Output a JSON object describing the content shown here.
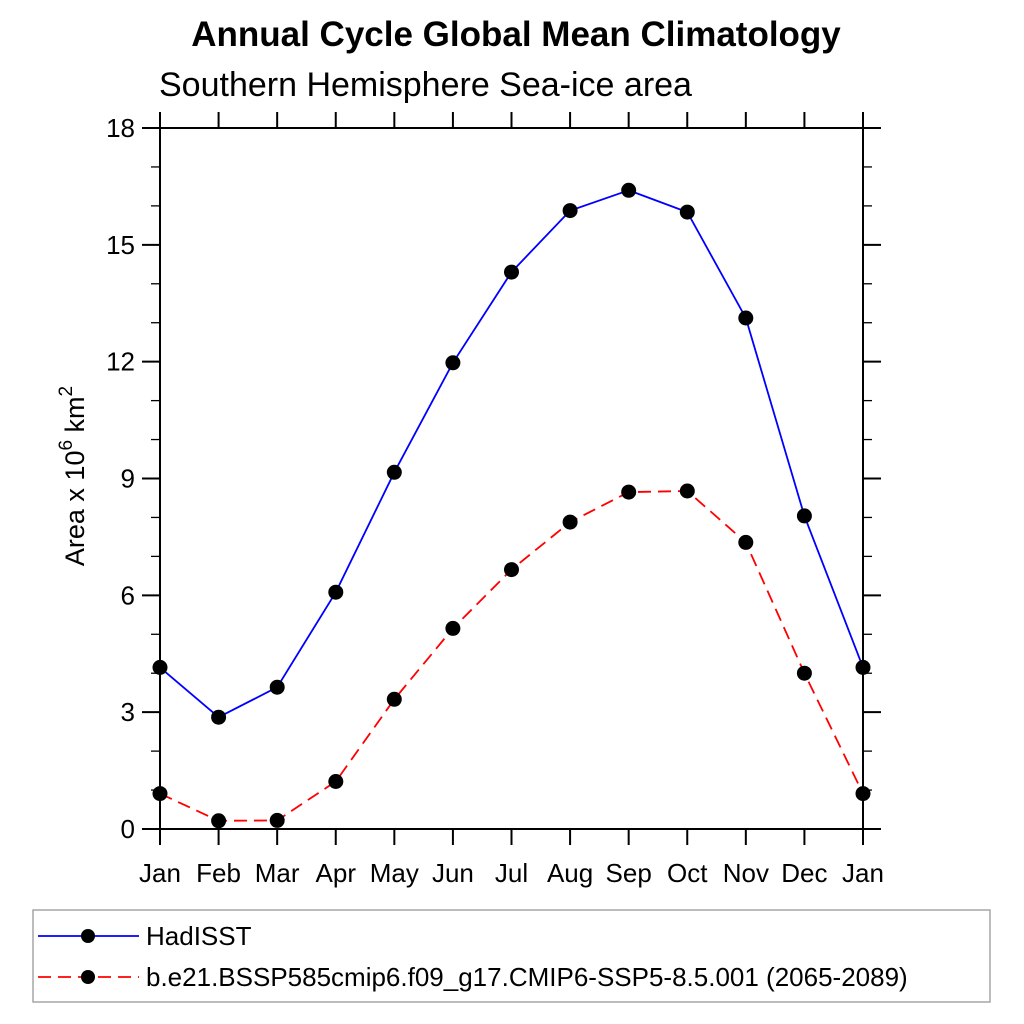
{
  "header": {
    "title": "Annual Cycle Global Mean Climatology",
    "subtitle": "Southern Hemisphere Sea-ice area"
  },
  "y_axis_label": {
    "base1": "Area x 10",
    "sup1": "6",
    "base2": " km",
    "sup2": "2"
  },
  "chart_data": {
    "type": "line",
    "title": "Annual Cycle Global Mean Climatology",
    "subtitle": "Southern Hemisphere Sea-ice area",
    "xlabel": "",
    "ylabel": "Area x 10^6 km^2",
    "x_labels": [
      "Jan",
      "Feb",
      "Mar",
      "Apr",
      "May",
      "Jun",
      "Jul",
      "Aug",
      "Sep",
      "Oct",
      "Nov",
      "Dec",
      "Jan"
    ],
    "ylim": [
      0,
      18
    ],
    "y_major_ticks": [
      0,
      3,
      6,
      9,
      12,
      15,
      18
    ],
    "y_minor_step": 1,
    "grid": false,
    "frame": "box-with-outward-ticks",
    "legend_position": "bottom-left-boxed",
    "series": [
      {
        "name": "HadISST",
        "color": "#0000ff",
        "line_style": "solid",
        "marker": "filled-circle",
        "marker_color": "#000000",
        "values": [
          4.15,
          2.87,
          3.64,
          6.08,
          9.16,
          11.97,
          14.3,
          15.88,
          16.4,
          15.84,
          13.12,
          8.04,
          4.15
        ]
      },
      {
        "name": "b.e21.BSSP585cmip6.f09_g17.CMIP6-SSP5-8.5.001 (2065-2089)",
        "color": "#ff0000",
        "line_style": "dashed",
        "marker": "filled-circle",
        "marker_color": "#000000",
        "values": [
          0.91,
          0.21,
          0.22,
          1.22,
          3.33,
          5.15,
          6.66,
          7.88,
          8.65,
          8.68,
          7.36,
          4.0,
          0.91
        ]
      }
    ]
  },
  "colors": {
    "axis": "#000000",
    "text": "#000000",
    "background": "#ffffff",
    "legend_border": "#a6a6a6"
  }
}
